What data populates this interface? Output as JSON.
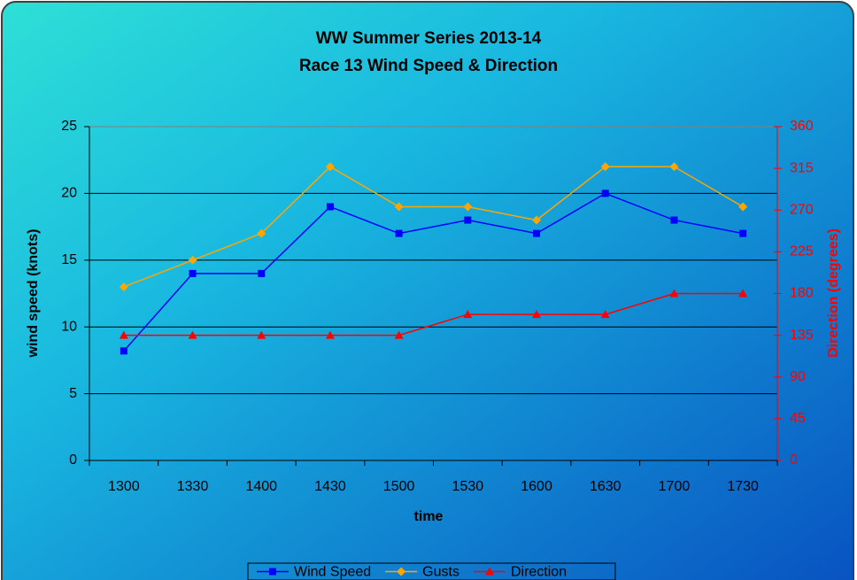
{
  "chart_data": {
    "type": "line",
    "title": [
      "WW Summer Series 2013-14",
      "Race 13 Wind Speed & Direction"
    ],
    "x_label": "time",
    "y_label": "wind speed (knots)",
    "y2_label": "Direction (degrees)",
    "categories": [
      "1300",
      "1330",
      "1400",
      "1430",
      "1500",
      "1530",
      "1600",
      "1630",
      "1700",
      "1730"
    ],
    "series": [
      {
        "name": "Wind Speed",
        "color": "#0000ff",
        "marker": "square",
        "values": [
          8.2,
          14,
          14,
          19,
          17,
          18,
          17,
          20,
          18,
          17
        ]
      },
      {
        "name": "Gusts",
        "color": "#ffa500",
        "marker": "diamond",
        "values": [
          13,
          15,
          17,
          22,
          19,
          19,
          18,
          22,
          22,
          19
        ]
      },
      {
        "name": "Direction",
        "color": "#ff0000",
        "marker": "triangle",
        "axis": "y2",
        "values": [
          135,
          135,
          135,
          135,
          135,
          157.5,
          157.5,
          157.5,
          180,
          180
        ]
      }
    ],
    "ylim": [
      0,
      25
    ],
    "yticks": [
      0,
      5,
      10,
      15,
      20,
      25
    ],
    "y2lim": [
      0,
      360
    ],
    "y2ticks": [
      0,
      45,
      90,
      135,
      180,
      225,
      270,
      315,
      360
    ],
    "y2_color": "#ff0000",
    "grid": true,
    "legend": "bottom"
  }
}
